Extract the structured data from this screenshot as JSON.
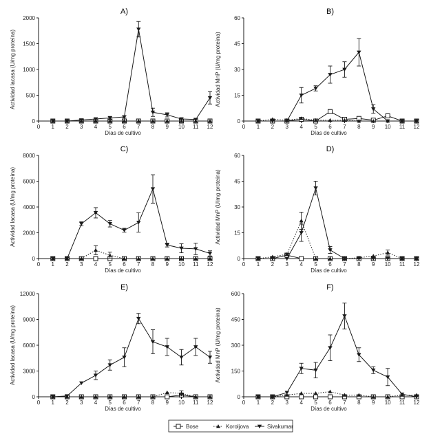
{
  "chart_data": [
    {
      "type": "line",
      "title": "A)",
      "xlabel": "Días de cultivo",
      "ylabel": "Actividad lacasa (U/mg proteína)",
      "xlim": [
        0,
        12
      ],
      "ylim": [
        0,
        2000
      ],
      "xticks": [
        0,
        1,
        2,
        3,
        4,
        5,
        6,
        7,
        8,
        9,
        10,
        11,
        12
      ],
      "yticks": [
        0,
        500,
        1000,
        1500,
        2000
      ],
      "ytick_labels": [
        "0",
        "500",
        "1000",
        "1500",
        "2000"
      ],
      "x": [
        1,
        2,
        3,
        4,
        5,
        6,
        7,
        8,
        9,
        10,
        11,
        12
      ],
      "series": [
        {
          "name": "Bose",
          "values": [
            0,
            0,
            0,
            0,
            0,
            0,
            0,
            0,
            0,
            0,
            0,
            0
          ],
          "err": [
            0,
            0,
            0,
            0,
            0,
            0,
            0,
            0,
            0,
            0,
            0,
            0
          ]
        },
        {
          "name": "Koroljova",
          "values": [
            0,
            0,
            0,
            0,
            0,
            0,
            0,
            0,
            0,
            0,
            0,
            0
          ],
          "err": [
            0,
            0,
            0,
            0,
            0,
            0,
            0,
            0,
            0,
            0,
            0,
            0
          ]
        },
        {
          "name": "Sivakumar",
          "values": [
            0,
            0,
            20,
            40,
            60,
            80,
            1780,
            170,
            120,
            40,
            30,
            450
          ],
          "err": [
            0,
            0,
            0,
            20,
            30,
            20,
            150,
            80,
            40,
            20,
            0,
            120
          ]
        }
      ]
    },
    {
      "type": "line",
      "title": "B)",
      "xlabel": "Días de cultivo",
      "ylabel": "Actividad MnP (U/mg proteína)",
      "xlim": [
        0,
        12
      ],
      "ylim": [
        0,
        60
      ],
      "xticks": [
        0,
        1,
        2,
        3,
        4,
        5,
        6,
        7,
        8,
        9,
        10,
        11,
        12
      ],
      "yticks": [
        0,
        15,
        30,
        45,
        60
      ],
      "ytick_labels": [
        "0",
        "15",
        "30",
        "45",
        "60"
      ],
      "x": [
        1,
        2,
        3,
        4,
        5,
        6,
        7,
        8,
        9,
        10,
        11,
        12
      ],
      "series": [
        {
          "name": "Bose",
          "values": [
            0,
            0,
            0,
            1,
            0,
            5.5,
            1,
            1.5,
            0.5,
            3,
            0,
            0
          ],
          "err": [
            0,
            0,
            0,
            0,
            0,
            0.5,
            0,
            0,
            0,
            0.5,
            0,
            0
          ]
        },
        {
          "name": "Koroljova",
          "values": [
            0,
            1,
            0.5,
            1.5,
            0.5,
            0.5,
            0.5,
            0,
            0,
            0,
            0,
            0
          ],
          "err": [
            0,
            0,
            0,
            0,
            0,
            0,
            0,
            0,
            0,
            0,
            0,
            0
          ]
        },
        {
          "name": "Sivakumar",
          "values": [
            0,
            0,
            0,
            15,
            19,
            27,
            30,
            40,
            7,
            0,
            0,
            0
          ],
          "err": [
            0,
            0,
            0,
            4.5,
            1.5,
            5,
            4.5,
            8,
            2.5,
            0,
            0,
            0
          ]
        }
      ]
    },
    {
      "type": "line",
      "title": "C)",
      "xlabel": "Días de cultivo",
      "ylabel": "Actividad lacasa (U/mg proteína)",
      "xlim": [
        0,
        12
      ],
      "ylim": [
        0,
        8000
      ],
      "xticks": [
        0,
        1,
        2,
        3,
        4,
        5,
        6,
        7,
        8,
        9,
        10,
        11,
        12
      ],
      "yticks": [
        0,
        2000,
        4000,
        6000,
        8000
      ],
      "ytick_labels": [
        "0",
        "2000",
        "4000",
        "6000",
        "8000"
      ],
      "x": [
        1,
        2,
        3,
        4,
        5,
        6,
        7,
        8,
        9,
        10,
        11,
        12
      ],
      "series": [
        {
          "name": "Bose",
          "values": [
            0,
            0,
            0,
            0,
            0,
            0,
            0,
            0,
            0,
            0,
            0,
            0
          ],
          "err": [
            0,
            0,
            0,
            0,
            0,
            0,
            0,
            0,
            0,
            0,
            0,
            0
          ]
        },
        {
          "name": "Koroljova",
          "values": [
            0,
            0,
            0,
            650,
            250,
            0,
            0,
            0,
            0,
            0,
            0,
            0
          ],
          "err": [
            0,
            0,
            0,
            350,
            250,
            0,
            0,
            0,
            0,
            0,
            0,
            0
          ]
        },
        {
          "name": "Sivakumar",
          "values": [
            0,
            0,
            2700,
            3550,
            2700,
            2200,
            2800,
            5400,
            1050,
            800,
            750,
            400
          ],
          "err": [
            0,
            0,
            150,
            400,
            250,
            150,
            750,
            1100,
            150,
            350,
            450,
            200
          ]
        }
      ]
    },
    {
      "type": "line",
      "title": "D)",
      "xlabel": "Días de cultivo",
      "ylabel": "Actividad MnP (U/mg proteína)",
      "xlim": [
        0,
        12
      ],
      "ylim": [
        0,
        60
      ],
      "xticks": [
        0,
        1,
        2,
        3,
        4,
        5,
        6,
        7,
        8,
        9,
        10,
        11,
        12
      ],
      "yticks": [
        0,
        15,
        30,
        45,
        60
      ],
      "ytick_labels": [
        "0",
        "15",
        "30",
        "45",
        "60"
      ],
      "x": [
        1,
        2,
        3,
        4,
        5,
        6,
        7,
        8,
        9,
        10,
        11,
        12
      ],
      "series": [
        {
          "name": "Bose",
          "values": [
            0,
            0,
            2,
            0,
            0,
            0,
            0,
            0,
            0,
            0,
            0,
            0
          ],
          "err": [
            0,
            0,
            0.5,
            0,
            0,
            0,
            0,
            0,
            0,
            0,
            0,
            0
          ]
        },
        {
          "name": "Koroljova",
          "values": [
            0,
            1,
            2.5,
            22,
            0,
            0,
            0,
            0.5,
            1.5,
            3.5,
            0,
            0
          ],
          "err": [
            0,
            0,
            0.5,
            5,
            0,
            0,
            0,
            0,
            0,
            1.5,
            0,
            0
          ]
        },
        {
          "name": "Sivakumar",
          "values": [
            0,
            0,
            0,
            15,
            41,
            5,
            0,
            0,
            0,
            0,
            0,
            0
          ],
          "err": [
            0,
            0,
            0,
            5,
            4,
            2,
            0,
            0,
            0,
            0,
            0,
            0
          ]
        }
      ]
    },
    {
      "type": "line",
      "title": "E)",
      "xlabel": "Días de cultivo",
      "ylabel": "Actividad lacasa (U/mg proteína)",
      "xlim": [
        0,
        12
      ],
      "ylim": [
        0,
        12000
      ],
      "xticks": [
        0,
        1,
        2,
        3,
        4,
        5,
        6,
        7,
        8,
        9,
        10,
        11,
        12
      ],
      "yticks": [
        0,
        3000,
        6000,
        9000,
        12000
      ],
      "ytick_labels": [
        "0",
        "3000",
        "6000",
        "9000",
        "12000"
      ],
      "x": [
        1,
        2,
        3,
        4,
        5,
        6,
        7,
        8,
        9,
        10,
        11,
        12
      ],
      "series": [
        {
          "name": "Bose",
          "values": [
            0,
            0,
            0,
            0,
            0,
            0,
            0,
            0,
            0,
            200,
            0,
            0
          ],
          "err": [
            0,
            0,
            0,
            0,
            0,
            0,
            0,
            0,
            0,
            0,
            0,
            0
          ]
        },
        {
          "name": "Koroljova",
          "values": [
            0,
            0,
            0,
            0,
            0,
            0,
            0,
            0,
            500,
            400,
            0,
            0
          ],
          "err": [
            0,
            0,
            0,
            0,
            0,
            0,
            0,
            0,
            0,
            300,
            0,
            0
          ]
        },
        {
          "name": "Sivakumar",
          "values": [
            0,
            100,
            1600,
            2500,
            3700,
            4600,
            9100,
            6400,
            5800,
            4600,
            5800,
            4600
          ],
          "err": [
            0,
            0,
            0,
            500,
            600,
            1100,
            600,
            1400,
            1000,
            900,
            1000,
            700
          ]
        }
      ]
    },
    {
      "type": "line",
      "title": "F)",
      "xlabel": "Días de cultivo",
      "ylabel": "Actividad MnP (U/mg proteína)",
      "xlim": [
        0,
        12
      ],
      "ylim": [
        0,
        600
      ],
      "xticks": [
        0,
        1,
        2,
        3,
        4,
        5,
        6,
        7,
        8,
        9,
        10,
        11,
        12
      ],
      "yticks": [
        0,
        150,
        300,
        450,
        600
      ],
      "ytick_labels": [
        "0",
        "150",
        "300",
        "450",
        "600"
      ],
      "x": [
        1,
        2,
        3,
        4,
        5,
        6,
        7,
        8,
        9,
        10,
        11,
        12
      ],
      "series": [
        {
          "name": "Bose",
          "values": [
            0,
            0,
            0,
            0,
            0,
            0,
            0,
            0,
            0,
            0,
            0,
            0
          ],
          "err": [
            0,
            0,
            0,
            0,
            0,
            0,
            0,
            0,
            0,
            0,
            0,
            0
          ]
        },
        {
          "name": "Koroljova",
          "values": [
            0,
            0,
            10,
            20,
            20,
            30,
            10,
            10,
            0,
            0,
            10,
            10
          ],
          "err": [
            0,
            0,
            0,
            0,
            0,
            0,
            0,
            0,
            0,
            0,
            0,
            0
          ]
        },
        {
          "name": "Sivakumar",
          "values": [
            0,
            0,
            25,
            165,
            155,
            285,
            470,
            245,
            155,
            115,
            15,
            0
          ],
          "err": [
            0,
            0,
            0,
            30,
            45,
            75,
            75,
            40,
            20,
            50,
            0,
            0
          ]
        }
      ]
    }
  ],
  "legend": {
    "placement": "bottom-center",
    "entries": [
      {
        "name": "Bose",
        "marker": "open-square",
        "line": "solid"
      },
      {
        "name": "Koroljova",
        "marker": "triangle-up",
        "line": "dotted"
      },
      {
        "name": "Sivakumar",
        "marker": "triangle-down",
        "line": "solid"
      }
    ]
  },
  "colors": {
    "ink": "#1a1a1a",
    "background": "#ffffff"
  }
}
